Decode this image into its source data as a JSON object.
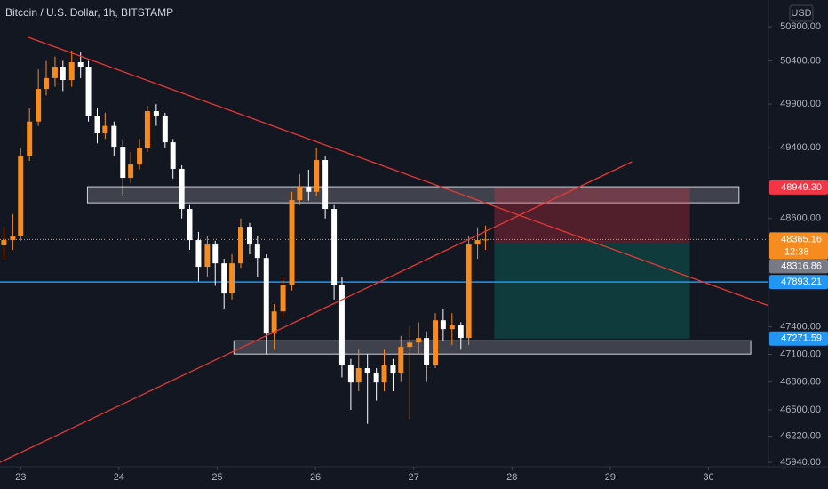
{
  "chart_data": {
    "type": "candlestick",
    "title": "Bitcoin / U.S. Dollar, 1h, BITSTAMP",
    "currency": "USD",
    "log": true,
    "grid": false,
    "up_color": "#f68b1f",
    "down_color": "#ffffff",
    "xlim": [
      22.79,
      30.61
    ],
    "ylim": [
      45893,
      51114
    ],
    "xticks": [
      23,
      24,
      25,
      26,
      27,
      28,
      29,
      30
    ],
    "yticks": [
      {
        "value": 50800,
        "label": "50800.00"
      },
      {
        "value": 50400,
        "label": "50400.00"
      },
      {
        "value": 49900,
        "label": "49900.00"
      },
      {
        "value": 49400,
        "label": "49400.00"
      },
      {
        "value": 48600,
        "label": "48600.00"
      },
      {
        "value": 47400,
        "label": "47400.00"
      },
      {
        "value": 47100,
        "label": "47100.00"
      },
      {
        "value": 46800,
        "label": "46800.00"
      },
      {
        "value": 46500,
        "label": "46500.00"
      },
      {
        "value": 46220,
        "label": "46220.00"
      },
      {
        "value": 45940,
        "label": "45940.00"
      }
    ],
    "x": [
      22.83,
      22.92,
      23.0,
      23.09,
      23.18,
      23.26,
      23.35,
      23.43,
      23.52,
      23.61,
      23.69,
      23.78,
      23.86,
      23.95,
      24.04,
      24.12,
      24.21,
      24.29,
      24.38,
      24.47,
      24.55,
      24.64,
      24.72,
      24.81,
      24.9,
      24.98,
      25.07,
      25.15,
      25.24,
      25.33,
      25.41,
      25.5,
      25.58,
      25.67,
      25.76,
      25.84,
      25.93,
      26.01,
      26.1,
      26.19,
      26.27,
      26.36,
      26.44,
      26.53,
      26.62,
      26.7,
      26.79,
      26.87,
      26.96,
      27.05,
      27.13,
      27.22,
      27.3,
      27.39,
      27.48,
      27.56,
      27.65,
      27.73
    ],
    "open": [
      48300,
      48358,
      48400,
      49310,
      49700,
      50075,
      50200,
      50333,
      50178,
      50385,
      50333,
      49768,
      49564,
      49650,
      49411,
      49058,
      49209,
      49400,
      49819,
      49760,
      49462,
      49159,
      48707,
      48358,
      48061,
      48308,
      48100,
      47766,
      48100,
      48507,
      48308,
      48159,
      47326,
      47569,
      47864,
      48807,
      48957,
      48900,
      49260,
      48707,
      47864,
      46988,
      46795,
      46950,
      46892,
      46795,
      46988,
      46892,
      47181,
      47229,
      47278,
      46988,
      47472,
      47375,
      47424,
      47278,
      48308,
      48358
    ],
    "high": [
      48500,
      48650,
      49400,
      49850,
      50300,
      50400,
      50450,
      50400,
      50520,
      50500,
      50400,
      49850,
      49800,
      49700,
      49500,
      49350,
      49500,
      49880,
      49900,
      49800,
      49500,
      49200,
      48750,
      48450,
      48400,
      48350,
      48150,
      48200,
      48600,
      48550,
      48400,
      48200,
      47650,
      47950,
      48900,
      49100,
      49150,
      49400,
      49300,
      48750,
      47950,
      47050,
      47150,
      47100,
      46950,
      47150,
      47050,
      47300,
      47400,
      47450,
      47350,
      47550,
      47600,
      47550,
      47450,
      48400,
      48500,
      48520
    ],
    "low": [
      48150,
      48250,
      48350,
      49250,
      49650,
      50000,
      50100,
      50050,
      50100,
      50200,
      49700,
      49450,
      49500,
      49300,
      48850,
      49000,
      49150,
      49350,
      49650,
      49400,
      49050,
      48600,
      48250,
      47900,
      47950,
      47850,
      47600,
      47700,
      48050,
      48200,
      47950,
      47100,
      47150,
      47500,
      47800,
      48750,
      48800,
      48850,
      48600,
      47700,
      46850,
      46500,
      46700,
      46350,
      46600,
      46700,
      46700,
      46800,
      46400,
      47100,
      46800,
      46950,
      47250,
      47200,
      47150,
      47200,
      48150,
      48250
    ],
    "close": [
      48358,
      48400,
      49310,
      49700,
      50075,
      50200,
      50333,
      50178,
      50385,
      50333,
      49768,
      49564,
      49650,
      49411,
      49058,
      49209,
      49400,
      49819,
      49760,
      49462,
      49159,
      48707,
      48358,
      48061,
      48308,
      48100,
      47766,
      48100,
      48507,
      48308,
      48159,
      47326,
      47569,
      47864,
      48807,
      48957,
      48900,
      49260,
      48707,
      47864,
      46988,
      46795,
      46950,
      46892,
      46795,
      46988,
      46892,
      47181,
      47229,
      47278,
      46988,
      47472,
      47375,
      47424,
      47278,
      48308,
      48358,
      48365
    ],
    "trend_lines": [
      {
        "x": [
          23.08,
          30.61
        ],
        "y": [
          50675,
          47632
        ],
        "color": "#e53935"
      },
      {
        "x": [
          22.79,
          29.22
        ],
        "y": [
          45940,
          49240
        ],
        "color": "#e53935"
      }
    ],
    "zones": [
      {
        "x": [
          23.68,
          30.31
        ],
        "y": [
          48776,
          48957
        ]
      },
      {
        "x": [
          25.17,
          30.43
        ],
        "y": [
          47103,
          47248
        ]
      }
    ],
    "position": {
      "x": [
        27.82,
        29.81
      ],
      "stop": 48949.3,
      "entry": 48330,
      "target": 47271.59,
      "stop_color": "#f23645",
      "target_color": "#089981"
    },
    "price_markers": [
      {
        "value": 48949.3,
        "label": "48949.30",
        "color": "#f23645"
      },
      {
        "value": 48365.16,
        "color": "#f68b1f",
        "countdown": "12:38",
        "line": "dotted"
      },
      {
        "value": 48316.86,
        "color": "#787b86"
      },
      {
        "value": 47893.21,
        "color": "#2196f3",
        "line": "solid"
      },
      {
        "value": 47271.59,
        "color": "#2196f3"
      }
    ]
  }
}
